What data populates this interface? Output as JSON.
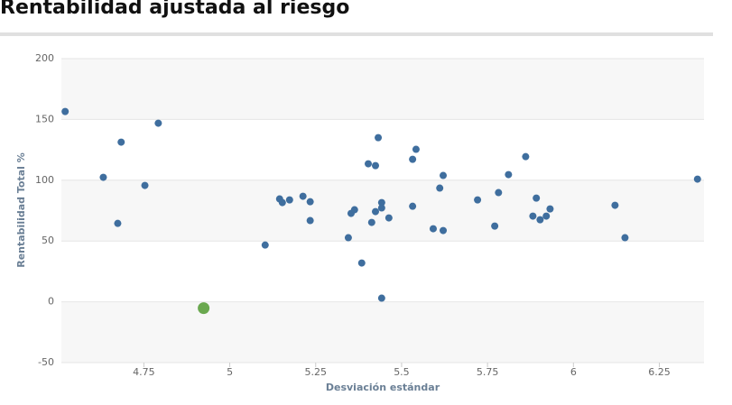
{
  "chart_data": {
    "type": "scatter",
    "title": "Rentabilidad ajustada al riesgo",
    "x_label": "Desviación estándar",
    "y_label": "Rentabilidad Total %",
    "xlim": [
      4.51,
      6.38
    ],
    "ylim": [
      -50,
      200
    ],
    "xticks": [
      4.75,
      5,
      5.25,
      5.5,
      5.75,
      6,
      6.25
    ],
    "yticks": [
      -50,
      0,
      50,
      100,
      150,
      200
    ],
    "grid": true,
    "series": [
      {
        "color": "#3f6e9e",
        "x": [
          4.521,
          4.632,
          4.684,
          4.674,
          4.753,
          4.792,
          5.103,
          5.145,
          5.153,
          5.174,
          5.213,
          5.234,
          5.234,
          5.345,
          5.353,
          5.363,
          5.384,
          5.403,
          5.424,
          5.413,
          5.424,
          5.432,
          5.442,
          5.442,
          5.442,
          5.463,
          5.532,
          5.542,
          5.532,
          5.592,
          5.611,
          5.621,
          5.621,
          5.721,
          5.771,
          5.782,
          5.811,
          5.861,
          5.892,
          5.882,
          5.903,
          5.921,
          5.932,
          6.121,
          6.15,
          6.361
        ],
        "y": [
          156.5,
          102.4,
          131.3,
          64.5,
          95.7,
          146.9,
          46.7,
          84.6,
          81.6,
          83.8,
          86.8,
          82.3,
          66.8,
          52.7,
          72.7,
          75.7,
          31.9,
          113.5,
          112.0,
          65.3,
          74.2,
          135.0,
          81.6,
          77.2,
          3.0,
          69.0,
          117.2,
          125.4,
          78.6,
          60.1,
          93.5,
          103.9,
          58.6,
          83.8,
          62.3,
          89.8,
          104.6,
          119.4,
          85.3,
          70.5,
          67.5,
          70.5,
          76.4,
          79.4,
          52.7,
          100.9
        ]
      },
      {
        "color": "#6aa84f",
        "x": [
          4.924
        ],
        "y": [
          -5.2
        ]
      }
    ]
  }
}
